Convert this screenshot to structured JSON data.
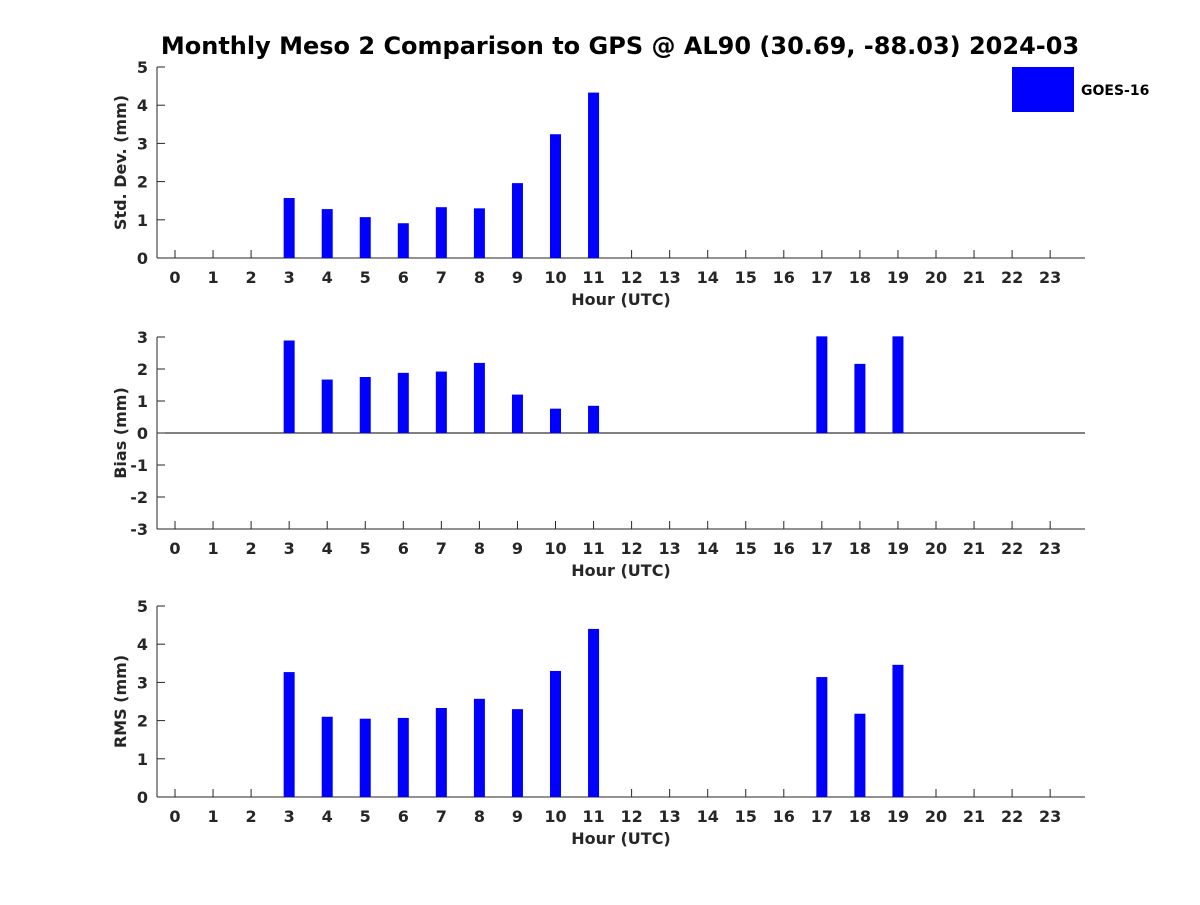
{
  "chart_data": {
    "type": "bar",
    "title": "Monthly Meso 2 Comparison to GPS @ AL90 (30.69, -88.03) 2024-03",
    "legend": {
      "placement": "top-right",
      "entries": [
        {
          "name": "GOES-16",
          "color": "#0000ff"
        }
      ]
    },
    "bar_color": "#0000ff",
    "panels": [
      {
        "id": "std",
        "ylabel": "Std. Dev. (mm)",
        "xlabel": "Hour (UTC)",
        "ylim": [
          0,
          5
        ],
        "yticks": [
          0,
          1,
          2,
          3,
          4,
          5
        ],
        "categories": [
          "0",
          "1",
          "2",
          "3",
          "4",
          "5",
          "6",
          "7",
          "8",
          "9",
          "10",
          "11",
          "12",
          "13",
          "14",
          "15",
          "16",
          "17",
          "18",
          "19",
          "20",
          "21",
          "22",
          "23"
        ],
        "series": [
          {
            "name": "GOES-16",
            "values": [
              null,
              null,
              null,
              1.57,
              1.28,
              1.07,
              0.91,
              1.33,
              1.3,
              1.96,
              3.24,
              4.33,
              null,
              null,
              null,
              null,
              null,
              null,
              null,
              null,
              null,
              null,
              null,
              null
            ]
          }
        ]
      },
      {
        "id": "bias",
        "ylabel": "Bias (mm)",
        "xlabel": "Hour (UTC)",
        "ylim": [
          -3,
          3
        ],
        "yticks": [
          -3,
          -2,
          -1,
          0,
          1,
          2,
          3
        ],
        "zero_line": true,
        "categories": [
          "0",
          "1",
          "2",
          "3",
          "4",
          "5",
          "6",
          "7",
          "8",
          "9",
          "10",
          "11",
          "12",
          "13",
          "14",
          "15",
          "16",
          "17",
          "18",
          "19",
          "20",
          "21",
          "22",
          "23"
        ],
        "series": [
          {
            "name": "GOES-16",
            "values": [
              null,
              null,
              null,
              2.89,
              1.67,
              1.75,
              1.88,
              1.92,
              2.19,
              1.2,
              0.76,
              0.85,
              null,
              null,
              null,
              null,
              null,
              3.02,
              2.16,
              3.02,
              null,
              null,
              null,
              null
            ]
          }
        ]
      },
      {
        "id": "rms",
        "ylabel": "RMS (mm)",
        "xlabel": "Hour (UTC)",
        "ylim": [
          0,
          5
        ],
        "yticks": [
          0,
          1,
          2,
          3,
          4,
          5
        ],
        "categories": [
          "0",
          "1",
          "2",
          "3",
          "4",
          "5",
          "6",
          "7",
          "8",
          "9",
          "10",
          "11",
          "12",
          "13",
          "14",
          "15",
          "16",
          "17",
          "18",
          "19",
          "20",
          "21",
          "22",
          "23"
        ],
        "series": [
          {
            "name": "GOES-16",
            "values": [
              null,
              null,
              null,
              3.27,
              2.1,
              2.05,
              2.07,
              2.33,
              2.57,
              2.3,
              3.3,
              4.4,
              null,
              null,
              null,
              null,
              null,
              3.14,
              2.18,
              3.46,
              null,
              null,
              null,
              null
            ]
          }
        ]
      }
    ]
  }
}
